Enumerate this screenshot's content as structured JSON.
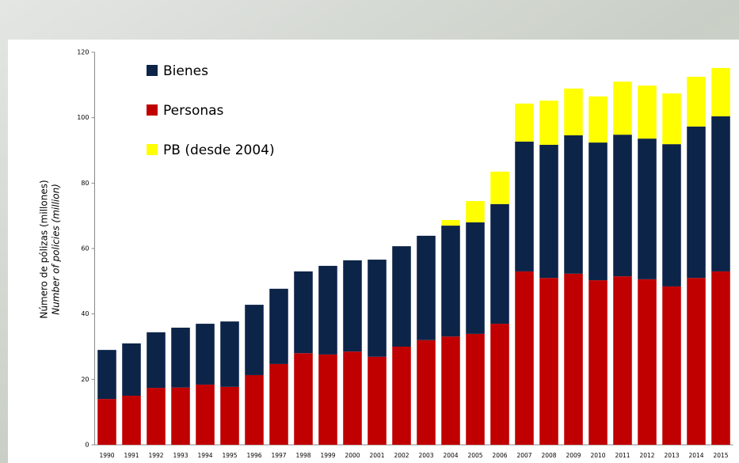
{
  "chart_data": {
    "type": "stacked_bar",
    "y_label": "Número de pólizas (millones)",
    "y_label_en": "Number of policies (million)",
    "categories": [
      "1990",
      "1991",
      "1992",
      "1993",
      "1994",
      "1995",
      "1996",
      "1997",
      "1998",
      "1999",
      "2000",
      "2001",
      "2002",
      "2003",
      "2004",
      "2005",
      "2006",
      "2007",
      "2008",
      "2009",
      "2010",
      "2011",
      "2012",
      "2013",
      "2014",
      "2015"
    ],
    "series": [
      {
        "name": "Personas",
        "color": "#c00000",
        "values": [
          14,
          15,
          17.4,
          17.5,
          18.4,
          17.7,
          21.3,
          24.7,
          28,
          27.6,
          28.5,
          26.9,
          30,
          32,
          33.1,
          33.9,
          37,
          53,
          51,
          52.3,
          50.3,
          51.5,
          50.6,
          48.4,
          51,
          53
        ]
      },
      {
        "name": "Bienes",
        "color": "#0d2449",
        "values": [
          15,
          16,
          17,
          18.3,
          18.6,
          20,
          21.5,
          23,
          25,
          27.1,
          27.9,
          29.7,
          30.7,
          31.9,
          33.9,
          34.1,
          36.6,
          39.7,
          40.7,
          42.3,
          42.1,
          43.3,
          43,
          43.5,
          46.3,
          47.4
        ]
      },
      {
        "name": "PB (desde 2004)",
        "color": "#ffff00",
        "values": [
          null,
          null,
          null,
          null,
          null,
          null,
          null,
          null,
          null,
          null,
          null,
          null,
          null,
          null,
          1.7,
          6.5,
          9.9,
          11.6,
          13.5,
          14.3,
          14.1,
          16.2,
          16.2,
          15.5,
          15.2,
          14.8
        ]
      }
    ],
    "legend_order": [
      1,
      0,
      2
    ],
    "ylim": [
      0,
      120
    ],
    "yticks": [
      0,
      20,
      40,
      60,
      80,
      100,
      120
    ],
    "grid": false
  }
}
